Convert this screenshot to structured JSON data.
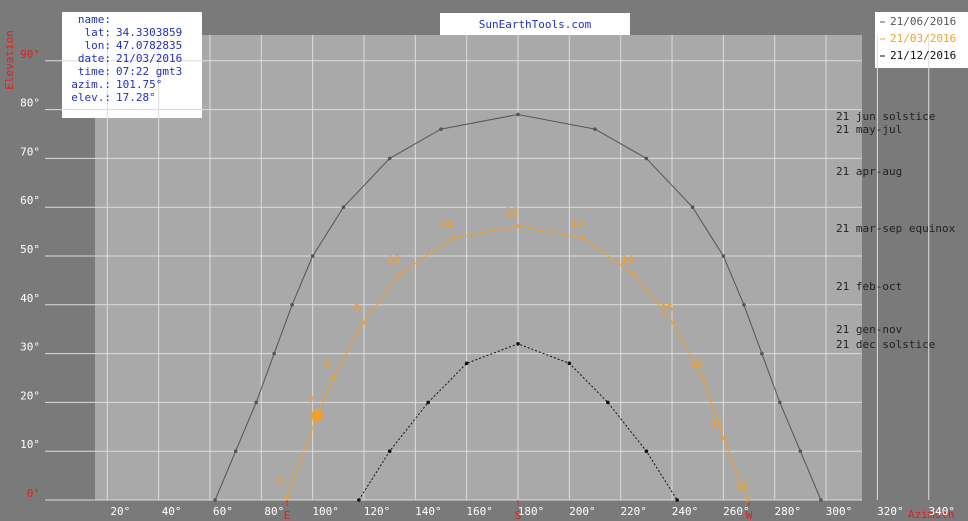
{
  "chart_data": {
    "type": "line",
    "title": "SunEarthTools.com",
    "ylabel": "Elevation",
    "xlabel": "Azimuth",
    "info": [
      {
        "label": "name:",
        "value": ""
      },
      {
        "label": "lat:",
        "value": "34.3303859"
      },
      {
        "label": "lon:",
        "value": "47.0782835"
      },
      {
        "label": "date:",
        "value": "21/03/2016"
      },
      {
        "label": "time:",
        "value": "07:22 gmt3"
      },
      {
        "label": "azim.:",
        "value": "101.75°"
      },
      {
        "label": "elev.:",
        "value": "17.28°"
      }
    ],
    "xlim": [
      -21.8,
      355.3
    ],
    "ylim": [
      0,
      100
    ],
    "xticks": [
      {
        "value": 20,
        "label": "20°"
      },
      {
        "value": 40,
        "label": "40°"
      },
      {
        "value": 60,
        "label": "60°"
      },
      {
        "value": 80,
        "label": "80°"
      },
      {
        "value": 100,
        "label": "100°"
      },
      {
        "value": 120,
        "label": "120°"
      },
      {
        "value": 140,
        "label": "140°"
      },
      {
        "value": 160,
        "label": "160°"
      },
      {
        "value": 180,
        "label": "180°"
      },
      {
        "value": 200,
        "label": "200°"
      },
      {
        "value": 220,
        "label": "220°"
      },
      {
        "value": 240,
        "label": "240°"
      },
      {
        "value": 260,
        "label": "260°"
      },
      {
        "value": 280,
        "label": "280°"
      },
      {
        "value": 300,
        "label": "300°"
      },
      {
        "value": 320,
        "label": "320°"
      },
      {
        "value": 340,
        "label": "340°"
      }
    ],
    "yticks": [
      {
        "value": 0,
        "label": "0°"
      },
      {
        "value": 10,
        "label": "10°"
      },
      {
        "value": 20,
        "label": "20°"
      },
      {
        "value": 30,
        "label": "30°"
      },
      {
        "value": 40,
        "label": "40°"
      },
      {
        "value": 50,
        "label": "50°"
      },
      {
        "value": 60,
        "label": "60°"
      },
      {
        "value": 70,
        "label": "70°"
      },
      {
        "value": 80,
        "label": "80°"
      },
      {
        "value": 90,
        "label": "90°"
      }
    ],
    "compass": [
      {
        "value": 90,
        "label": "E"
      },
      {
        "value": 180,
        "label": "S"
      },
      {
        "value": 270,
        "label": "W"
      }
    ],
    "grid": true,
    "series": [
      {
        "name": "21/06/2016",
        "color": "#555555",
        "dash": "solid",
        "x": [
          62,
          70,
          78,
          85,
          92,
          100,
          112,
          130,
          150,
          180,
          210,
          230,
          248,
          260,
          268,
          275,
          282,
          290,
          298
        ],
        "values": [
          0,
          10,
          20,
          30,
          40,
          50,
          60,
          70,
          76,
          79,
          76,
          70,
          60,
          50,
          40,
          30,
          20,
          10,
          0
        ]
      },
      {
        "name": "21/03/2016",
        "color": "#f0a030",
        "dash": "solid",
        "x": [
          90,
          101.75,
          108,
          119.6,
          134,
          154.7,
          180,
          205.3,
          225,
          240.4,
          252,
          260,
          269.6
        ],
        "values": [
          0.6,
          17.28,
          25,
          36.3,
          46.3,
          53.7,
          56.1,
          53.7,
          46.3,
          36.3,
          25,
          12.7,
          0
        ],
        "hour_labels": [
          6,
          7,
          8,
          9,
          10,
          11,
          12,
          13,
          14,
          15,
          16,
          17,
          18
        ]
      },
      {
        "name": "21/12/2016",
        "color": "#111111",
        "dash": "dotted",
        "x": [
          118,
          130,
          145,
          160,
          180,
          200,
          215,
          230,
          242
        ],
        "values": [
          0,
          10,
          20,
          28,
          32,
          28,
          20,
          10,
          0
        ]
      }
    ],
    "legend": "upper right",
    "annotations": [
      "21 jun  solstice",
      "21 may-jul",
      "21 apr-aug",
      "21 mar-sep equinox",
      "21 feb-oct",
      "21 gen-nov",
      "21 dec  solstice"
    ]
  }
}
